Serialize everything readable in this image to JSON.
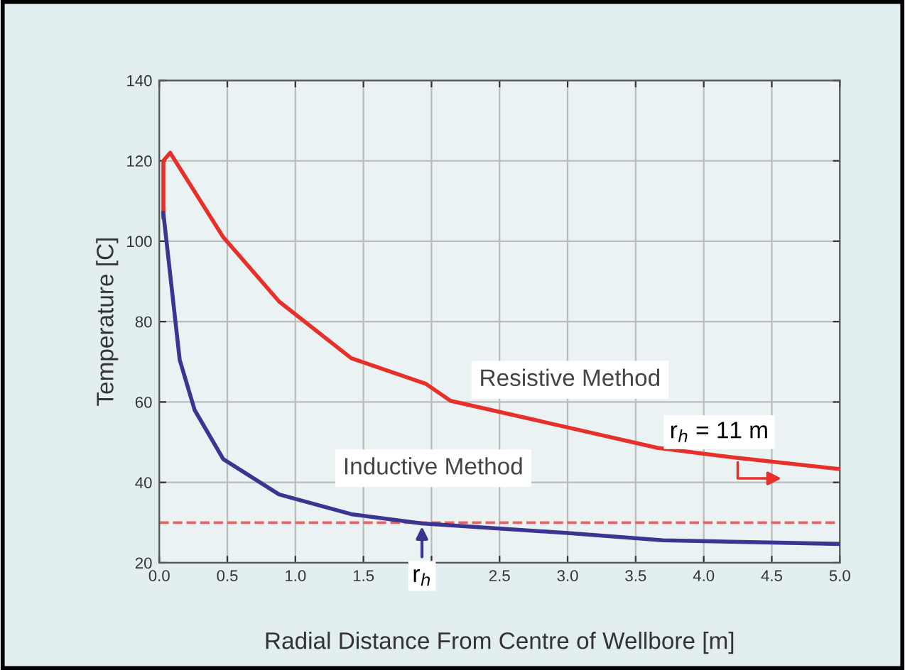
{
  "chart_data": {
    "type": "line",
    "xlabel": "Radial Distance From Centre of Wellbore [m]",
    "ylabel": "Temperature [C]",
    "series": [
      {
        "name": "Resistive Method",
        "color": "#e8302a",
        "x": [
          0.03,
          0.03,
          0.08,
          0.47,
          0.88,
          1.41,
          1.96,
          2.14,
          3.66,
          4.22,
          5.0
        ],
        "values": [
          106,
          120,
          122,
          101,
          85,
          70.9,
          64.5,
          60.3,
          48.6,
          46.2,
          43.3
        ]
      },
      {
        "name": "Inductive Method",
        "color": "#3a3590",
        "x": [
          0.03,
          0.15,
          0.26,
          0.47,
          0.88,
          1.41,
          1.93,
          3.0,
          3.7,
          5.0
        ],
        "values": [
          107,
          70.5,
          58,
          45.8,
          37,
          32.1,
          29.8,
          27.4,
          25.6,
          24.7
        ]
      }
    ],
    "xlim": [
      0,
      5
    ],
    "xticks": [
      {
        "value": 0,
        "label": "0.0"
      },
      0.5,
      {
        "value": 1,
        "label": "1.0"
      },
      1.5,
      {
        "value": 2,
        "label": null
      },
      2.5,
      {
        "value": 3,
        "label": "3.0"
      },
      3.5,
      {
        "value": 4,
        "label": "4.0"
      },
      4.5,
      {
        "value": 5,
        "label": "5.0"
      }
    ],
    "ylim": [
      20,
      140
    ],
    "yticks": [
      20,
      40,
      60,
      80,
      100,
      120,
      140
    ],
    "ref_lines": [
      {
        "axis": "y",
        "value": 30,
        "color": "#f06060",
        "line_style": "dashed"
      }
    ],
    "annotations": [
      {
        "text": "r$_{h}$",
        "x": 1.93,
        "y": 30
      },
      {
        "text": "r$_{h}$ = 11 m",
        "x": 4.25,
        "y": 46
      }
    ],
    "grid": true,
    "legend": false,
    "marker": "none",
    "line_style": "solid"
  }
}
